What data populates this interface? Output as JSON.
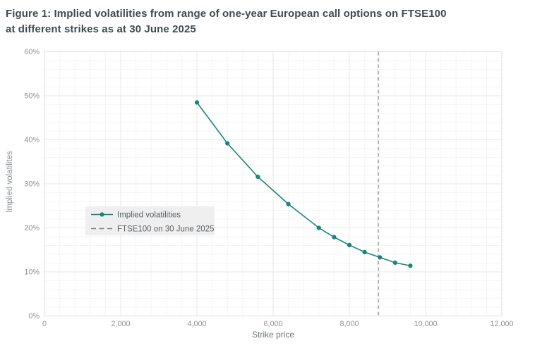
{
  "figure": {
    "title_line1": "Figure 1: Implied volatilities from range of one-year European call options on FTSE100",
    "title_line2": "at different strikes as at 30 June 2025"
  },
  "chart_data": {
    "type": "line",
    "title": "Figure 1: Implied volatilities from range of one-year European call options on FTSE100 at different strikes as at 30 June 2025",
    "xlabel": "Strike price",
    "ylabel": "Implied volatilites",
    "xlim": [
      0,
      12000
    ],
    "ylim": [
      0,
      60
    ],
    "x_ticks": [
      0,
      2000,
      4000,
      6000,
      8000,
      10000,
      12000
    ],
    "x_tick_labels": [
      "0",
      "2,000",
      "4,000",
      "6,000",
      "8,000",
      "10,000",
      "12,000"
    ],
    "y_ticks": [
      0,
      10,
      20,
      30,
      40,
      50,
      60
    ],
    "y_tick_labels": [
      "0%",
      "10%",
      "20%",
      "30%",
      "40%",
      "50%",
      "60%"
    ],
    "x_minor_step": 400,
    "y_minor_step": 2,
    "grid": true,
    "legend_position": "middle-left",
    "series": [
      {
        "name": "Implied volatilities",
        "type": "line",
        "marker": "circle",
        "x": [
          4000,
          4800,
          5600,
          6400,
          7200,
          7600,
          8000,
          8400,
          8800,
          9200,
          9600
        ],
        "y": [
          48.5,
          39.2,
          31.6,
          25.4,
          20.0,
          17.9,
          16.1,
          14.5,
          13.3,
          12.1,
          11.4
        ]
      }
    ],
    "vline": {
      "label": "FTSE100 on 30 June 2025",
      "x": 8760,
      "style": "dashed"
    }
  },
  "colors": {
    "background": "#ffffff",
    "title_text": "#414a4f",
    "axis_text": "#919191",
    "axis_title_text": "#6e7377",
    "legend_text": "#5c6165",
    "legend_bg": "#efefef",
    "grid_major": "#e7e7e7",
    "grid_minor": "#f5f5f5",
    "plot_edge": "#dedede",
    "series_teal": "#17867c",
    "vline_gray": "#7f7f7f"
  }
}
